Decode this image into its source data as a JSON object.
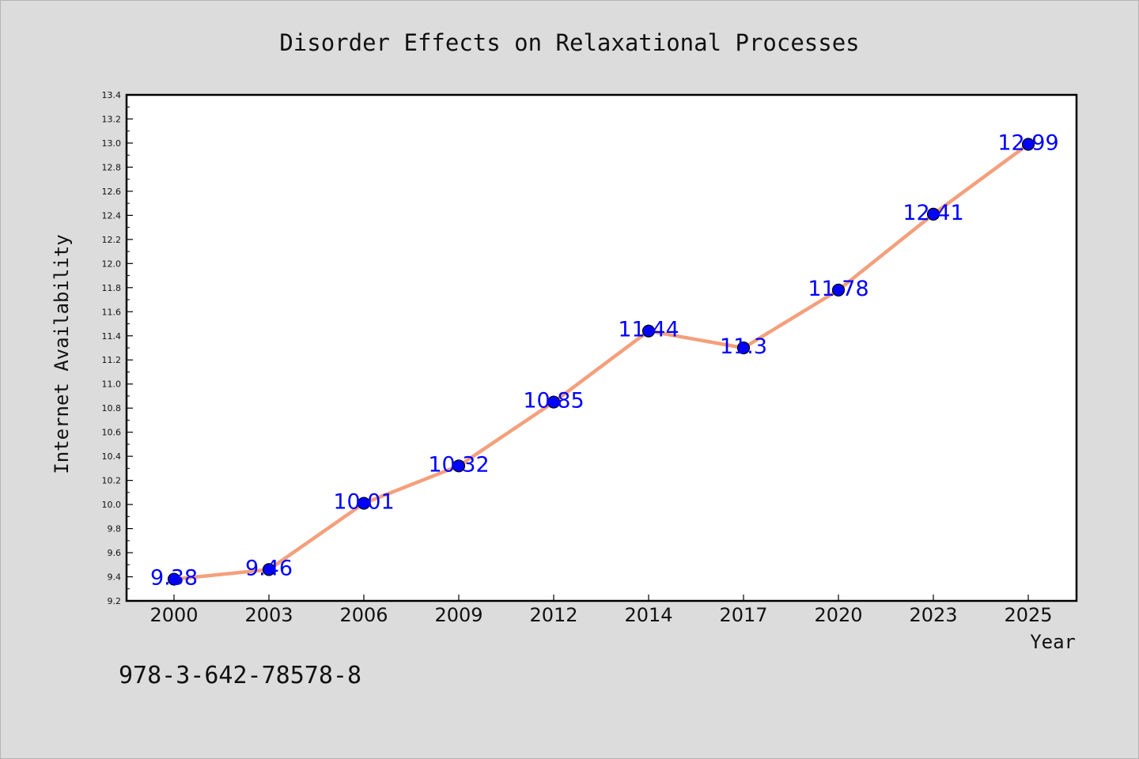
{
  "chart_data": {
    "type": "line",
    "title": "Disorder Effects on Relaxational Processes",
    "xlabel": "Year",
    "ylabel": "Internet Availability",
    "categories": [
      "2000",
      "2003",
      "2006",
      "2009",
      "2012",
      "2014",
      "2017",
      "2020",
      "2023",
      "2025"
    ],
    "values": [
      9.38,
      9.46,
      10.01,
      10.32,
      10.85,
      11.44,
      11.3,
      11.78,
      12.41,
      12.99
    ],
    "data_labels": [
      "9.38",
      "9.46",
      "10.01",
      "10.32",
      "10.85",
      "11.44",
      "11.3",
      "11.78",
      "12.41",
      "12.99"
    ],
    "yticks": [
      "9.2",
      "9.4",
      "9.6",
      "9.8",
      "10.0",
      "10.2",
      "10.4",
      "10.6",
      "10.8",
      "11.0",
      "11.2",
      "11.4",
      "11.6",
      "11.8",
      "12.0",
      "12.2",
      "12.4",
      "12.6",
      "12.8",
      "13.0",
      "13.2",
      "13.4"
    ],
    "ylim": [
      9.2,
      13.4
    ],
    "grid": false,
    "legend": "none",
    "colors": {
      "line": "#f4a07c",
      "marker": "#0000ff",
      "label": "#0000ff",
      "background": "#dcdcdc",
      "plot_background": "#ffffff"
    }
  },
  "footnote": "978-3-642-78578-8"
}
